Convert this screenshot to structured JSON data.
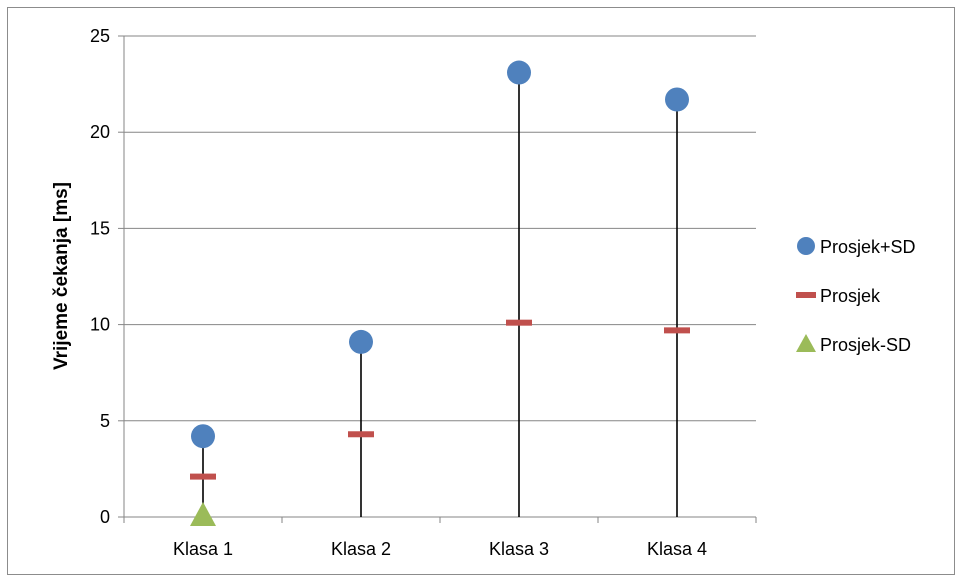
{
  "chart_data": {
    "type": "scatter",
    "title": "",
    "xlabel": "",
    "ylabel": "Vrijeme čekanja [ms]",
    "categories": [
      "Klasa 1",
      "Klasa 2",
      "Klasa 3",
      "Klasa 4"
    ],
    "ylim": [
      0,
      25
    ],
    "yticks": [
      "0",
      "5",
      "10",
      "15",
      "20",
      "25"
    ],
    "grid": true,
    "legend_position": "right",
    "series": [
      {
        "name": "Prosjek+SD",
        "marker": "circle",
        "color": "#4f81bd",
        "values": [
          4.2,
          9.1,
          23.1,
          21.7
        ]
      },
      {
        "name": "Prosjek",
        "marker": "dash",
        "color": "#c0504d",
        "values": [
          2.1,
          4.3,
          10.1,
          9.7
        ]
      },
      {
        "name": "Prosjek-SD",
        "marker": "triangle",
        "color": "#9bbb59",
        "values": [
          0.0,
          null,
          null,
          null
        ]
      }
    ],
    "high_low_lines": true
  }
}
